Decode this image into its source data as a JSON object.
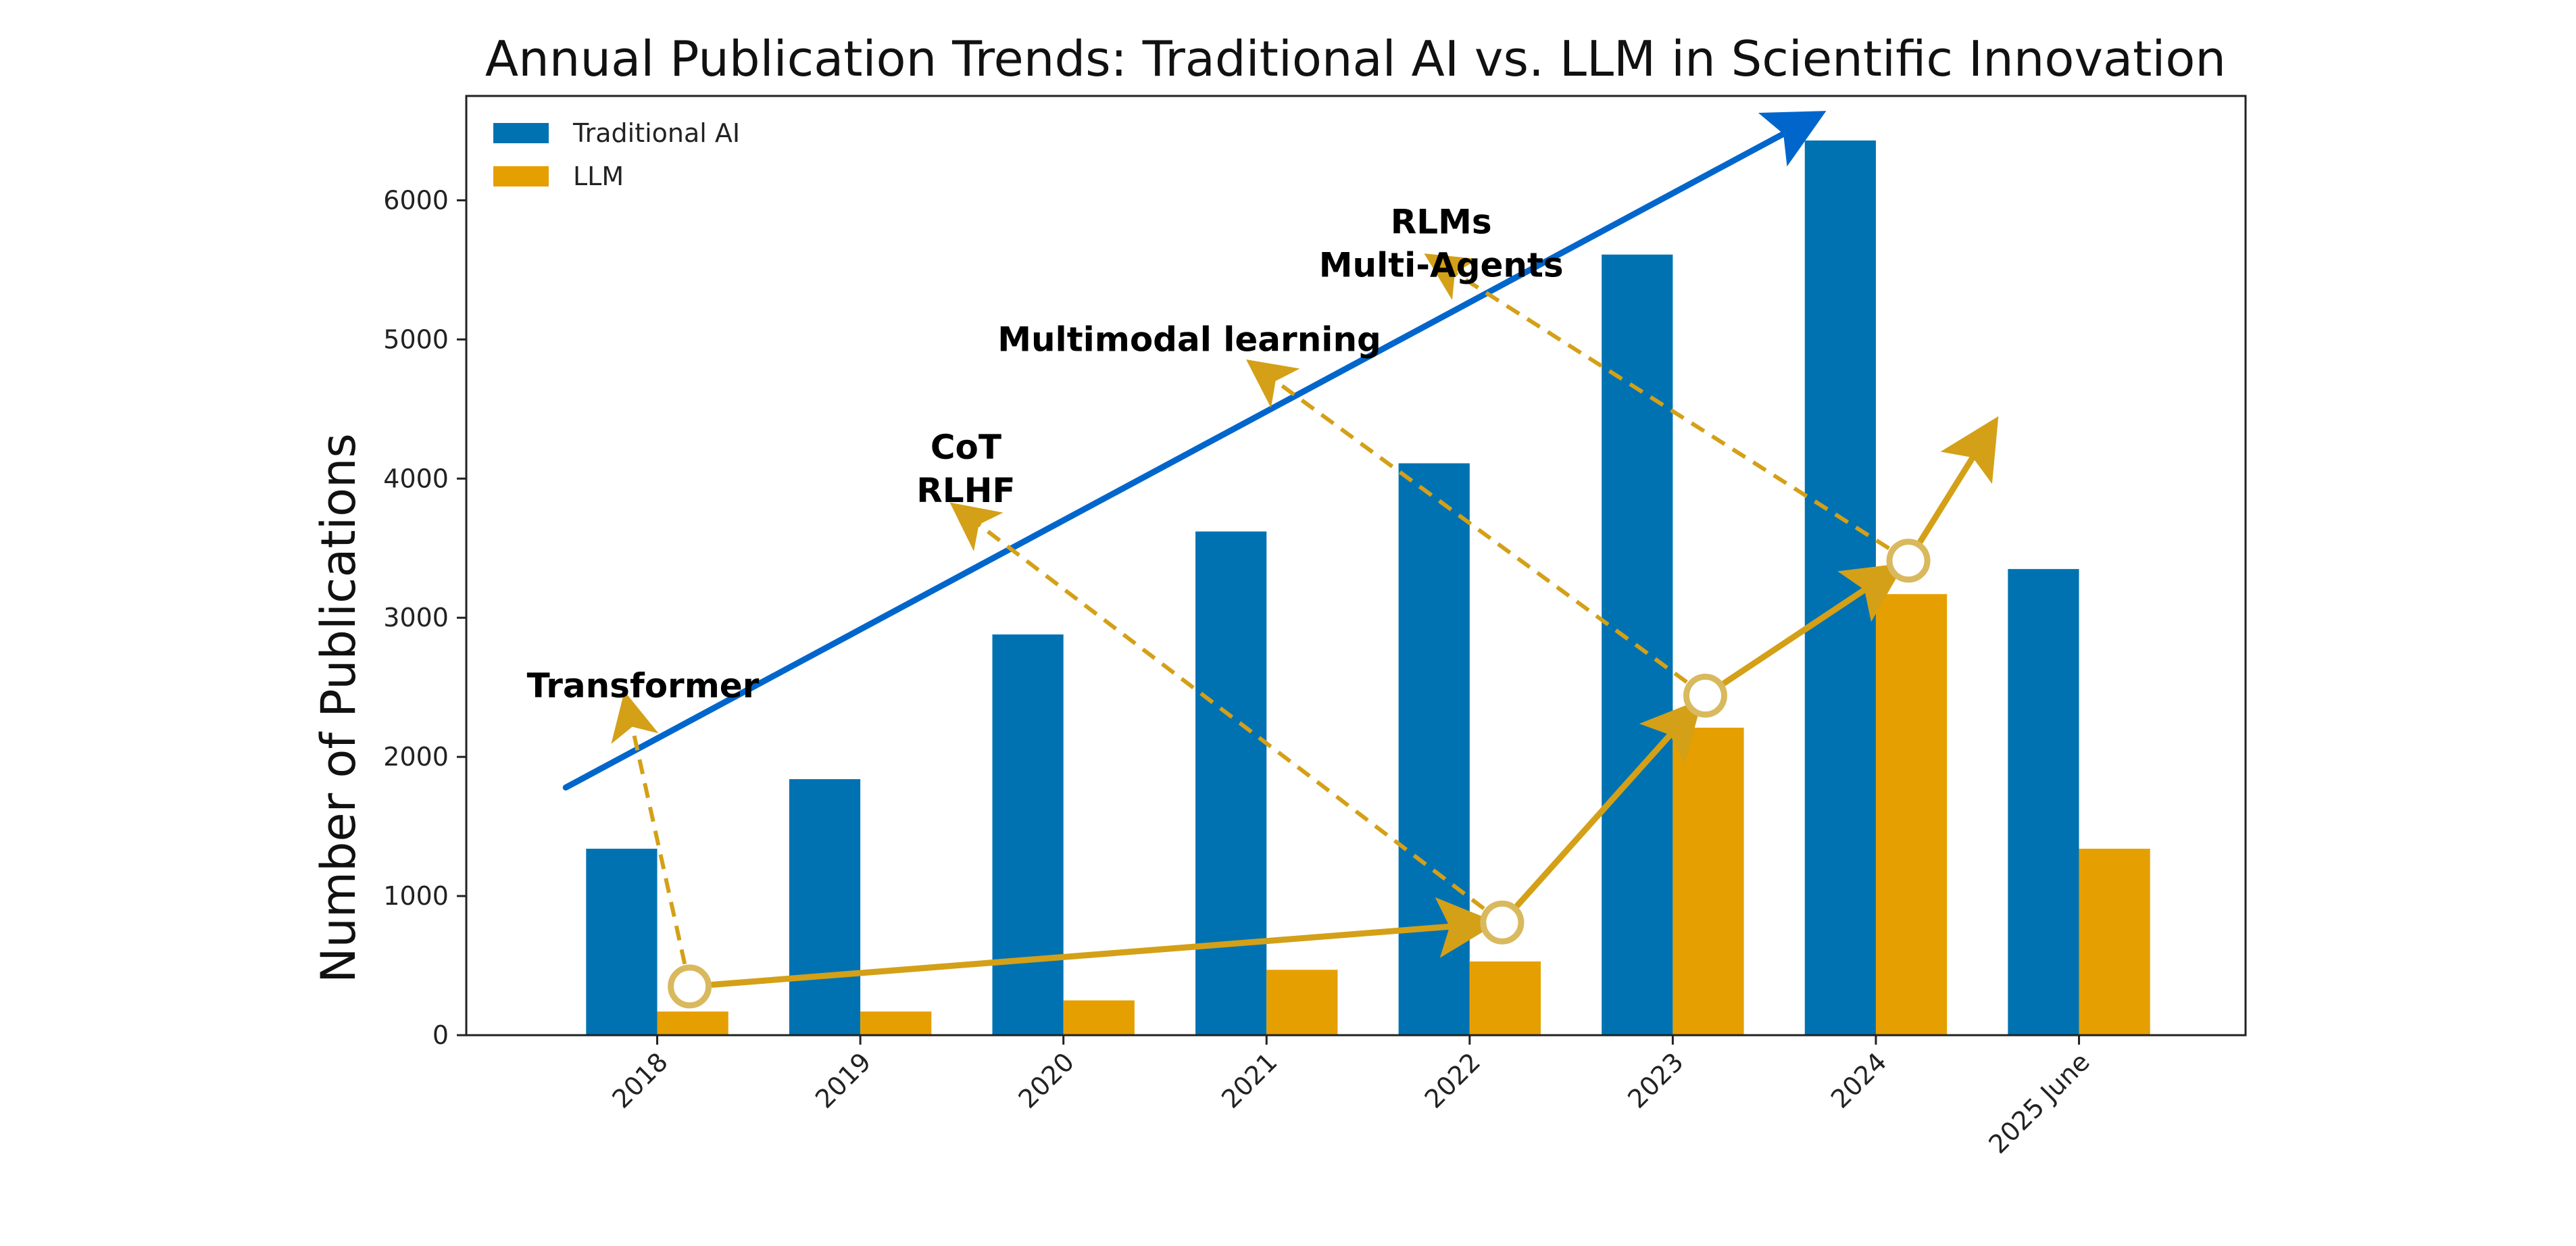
{
  "chart_data": {
    "type": "bar",
    "title": "Annual Publication Trends: Traditional AI vs. LLM in Scientific Innovation",
    "xlabel": "",
    "ylabel": "Number of Publications",
    "ylim": [
      0,
      6750
    ],
    "yticks": [
      0,
      1000,
      2000,
      3000,
      4000,
      5000,
      6000
    ],
    "categories": [
      "2018",
      "2019",
      "2020",
      "2021",
      "2022",
      "2023",
      "2024",
      "2025 June"
    ],
    "series": [
      {
        "name": "Traditional AI",
        "color": "#0072B2",
        "values": [
          1340,
          1840,
          2880,
          3620,
          4110,
          5610,
          6430,
          3350
        ]
      },
      {
        "name": "LLM",
        "color": "#E69F00",
        "values": [
          170,
          170,
          250,
          470,
          530,
          2210,
          3170,
          1340
        ]
      }
    ],
    "legend": "top-left",
    "grid": false,
    "trend_line": {
      "color": "#0066CC",
      "x_start": -0.45,
      "y_start": 1780,
      "x_end": 5.65,
      "y_end": 6560
    },
    "milestones": [
      {
        "label": "Transformer",
        "x": 0.16,
        "y": 350
      },
      {
        "label": "CoT\nRLHF",
        "x": 4.16,
        "y": 810
      },
      {
        "label": "Multimodal learning",
        "x": 5.16,
        "y": 2440
      },
      {
        "label": "RLMs\nMulti-Agents",
        "x": 6.16,
        "y": 3410
      }
    ],
    "milestone_arrow_end": [
      6.54,
      4300
    ],
    "annotations": [
      {
        "text": "Transformer",
        "x": -0.07,
        "y": 2510,
        "target_x": -0.14,
        "target_y": 2330
      },
      {
        "text": "CoT\nRLHF",
        "x": 1.52,
        "y": 4070,
        "target_x": 1.52,
        "target_y": 3740
      },
      {
        "text": "Multimodal learning",
        "x": 2.62,
        "y": 5000,
        "target_x": 2.98,
        "target_y": 4770
      },
      {
        "text": "RLMs\nMulti-Agents",
        "x": 3.86,
        "y": 5690,
        "target_x": 3.86,
        "target_y": 5540
      }
    ],
    "milestone_color": "#D4A017",
    "circle_color": "#D9B95E"
  }
}
